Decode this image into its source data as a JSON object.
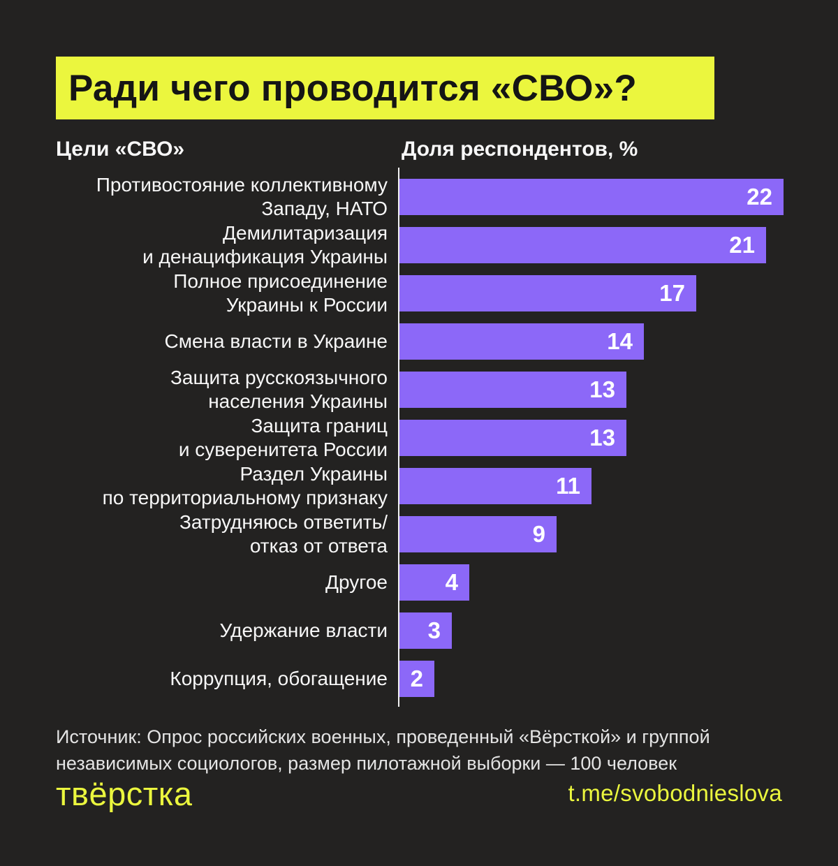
{
  "page": {
    "background_color": "#232221",
    "accent_yellow": "#ebf63e",
    "bar_color": "#8c68f8",
    "text_color": "#f7f7f7"
  },
  "title": {
    "text": "Ради чего проводится «СВО»?"
  },
  "headers": {
    "left": "Цели «СВО»",
    "right": "Доля респондентов, %"
  },
  "chart_data": {
    "type": "bar",
    "orientation": "horizontal",
    "title": "Ради чего проводится «СВО»?",
    "xlabel": "Доля респондентов, %",
    "ylabel": "Цели «СВО»",
    "xlim": [
      0,
      22
    ],
    "grid": false,
    "bar_color": "#8c68f8",
    "value_labels_inside_bars": true,
    "categories": [
      "Противостояние коллективному Западу, НАТО",
      "Демилитаризация и денацификация Украины",
      "Полное присоединение Украины к России",
      "Смена власти в Украине",
      "Защита русскоязычного населения Украины",
      "Защита границ и суверенитета России",
      "Раздел Украины по территориальному признаку",
      "Затрудняюсь ответить/ отказ от ответа",
      "Другое",
      "Удержание власти",
      "Коррупция, обогащение"
    ],
    "category_lines": [
      [
        "Противостояние коллективному",
        "Западу, НАТО"
      ],
      [
        "Демилитаризация",
        "и денацификация Украины"
      ],
      [
        "Полное присоединение",
        "Украины к России"
      ],
      [
        "Смена власти в Украине"
      ],
      [
        "Защита русскоязычного",
        "населения Украины"
      ],
      [
        "Защита границ",
        "и суверенитета России"
      ],
      [
        "Раздел Украины",
        "по территориальному признаку"
      ],
      [
        "Затрудняюсь ответить/",
        "отказ от ответа"
      ],
      [
        "Другое"
      ],
      [
        "Удержание власти"
      ],
      [
        "Коррупция, обогащение"
      ]
    ],
    "values": [
      22,
      21,
      17,
      14,
      13,
      13,
      11,
      9,
      4,
      3,
      2
    ],
    "unit": "%"
  },
  "footer": {
    "source_line1": "Источник: Опрос российских военных, проведенный «Вёрсткой» и группой",
    "source_line2": "независимых социологов, размер пилотажной выборки — 100 человек",
    "logo": "твёрстка",
    "link": "t.me/svobodnieslova"
  }
}
